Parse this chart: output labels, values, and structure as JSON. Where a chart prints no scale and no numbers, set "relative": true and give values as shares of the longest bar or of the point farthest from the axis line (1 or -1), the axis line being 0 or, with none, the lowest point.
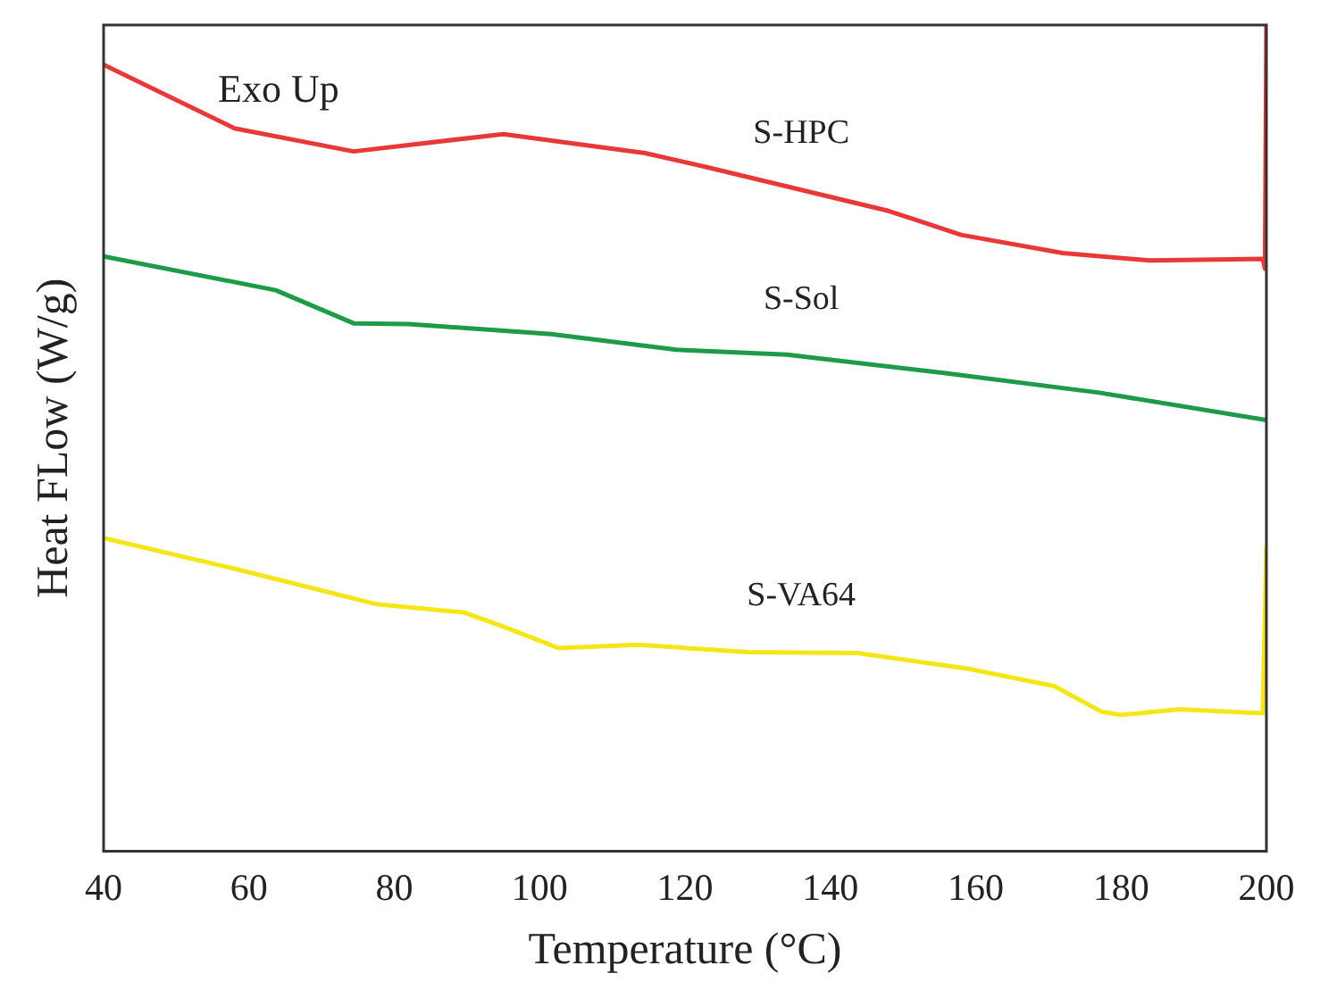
{
  "chart_data": {
    "type": "line",
    "relative": true,
    "xlabel": "Temperature (°C)",
    "ylabel": "Heat FLow (W/g)",
    "annotations": [
      "Exo Up"
    ],
    "xlim": [
      40,
      200
    ],
    "xticks": [
      40,
      60,
      80,
      100,
      120,
      140,
      160,
      180,
      200
    ],
    "tick_labels": "x",
    "grid": false,
    "legend": false,
    "marker": "none",
    "line_style": "solid",
    "series": [
      {
        "name": "S-HPC",
        "color": "#e8393a",
        "x": [
          40,
          58,
          74.4,
          95,
          114.5,
          123,
          148,
          158,
          172,
          184,
          199.5,
          199.8,
          200
        ],
        "values": [
          0.952,
          0.875,
          0.847,
          0.868,
          0.845,
          0.828,
          0.775,
          0.746,
          0.724,
          0.715,
          0.717,
          0.705,
          1.0
        ]
      },
      {
        "name": "S-Sol",
        "color": "#1e9a48",
        "x": [
          40,
          63.7,
          74.4,
          82,
          101.6,
          118.8,
          134,
          155.6,
          177,
          200
        ],
        "values": [
          0.72,
          0.679,
          0.639,
          0.638,
          0.626,
          0.607,
          0.601,
          0.579,
          0.555,
          0.522
        ]
      },
      {
        "name": "S-VA64",
        "color": "#f5e61a",
        "x": [
          40,
          58,
          77.6,
          89.6,
          95,
          102.6,
          113.5,
          128.7,
          143.7,
          158.9,
          170.8,
          177.3,
          180,
          188,
          199.5,
          200
        ],
        "values": [
          0.379,
          0.342,
          0.299,
          0.289,
          0.272,
          0.246,
          0.25,
          0.241,
          0.24,
          0.221,
          0.2,
          0.169,
          0.165,
          0.172,
          0.167,
          0.368
        ]
      }
    ]
  }
}
